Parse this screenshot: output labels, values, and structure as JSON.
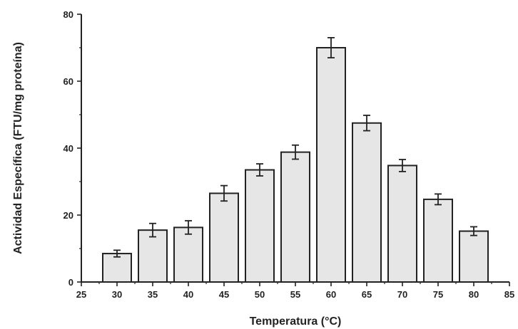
{
  "chart_data": {
    "type": "bar",
    "title": "",
    "xlabel": "Temperatura (°C)",
    "ylabel": "Actividad Específica (FTU/mg proteína)",
    "x_ticks": [
      "25",
      "30",
      "35",
      "40",
      "45",
      "50",
      "55",
      "60",
      "65",
      "70",
      "75",
      "80",
      "85"
    ],
    "y_ticks": [
      "0",
      "20",
      "40",
      "60",
      "80"
    ],
    "xlim": [
      25,
      85
    ],
    "ylim": [
      0,
      80
    ],
    "x": [
      30,
      35,
      40,
      45,
      50,
      55,
      60,
      65,
      70,
      75,
      80
    ],
    "values": [
      8.5,
      15.5,
      16.3,
      26.5,
      33.5,
      38.8,
      70.0,
      47.5,
      34.8,
      24.7,
      15.2
    ],
    "errors": [
      1.0,
      2.0,
      2.0,
      2.3,
      1.8,
      2.1,
      3.0,
      2.3,
      1.8,
      1.6,
      1.3
    ],
    "bar_color": "#e6e6e6",
    "edge_color": "#222222",
    "grid": false,
    "legend": "none"
  }
}
